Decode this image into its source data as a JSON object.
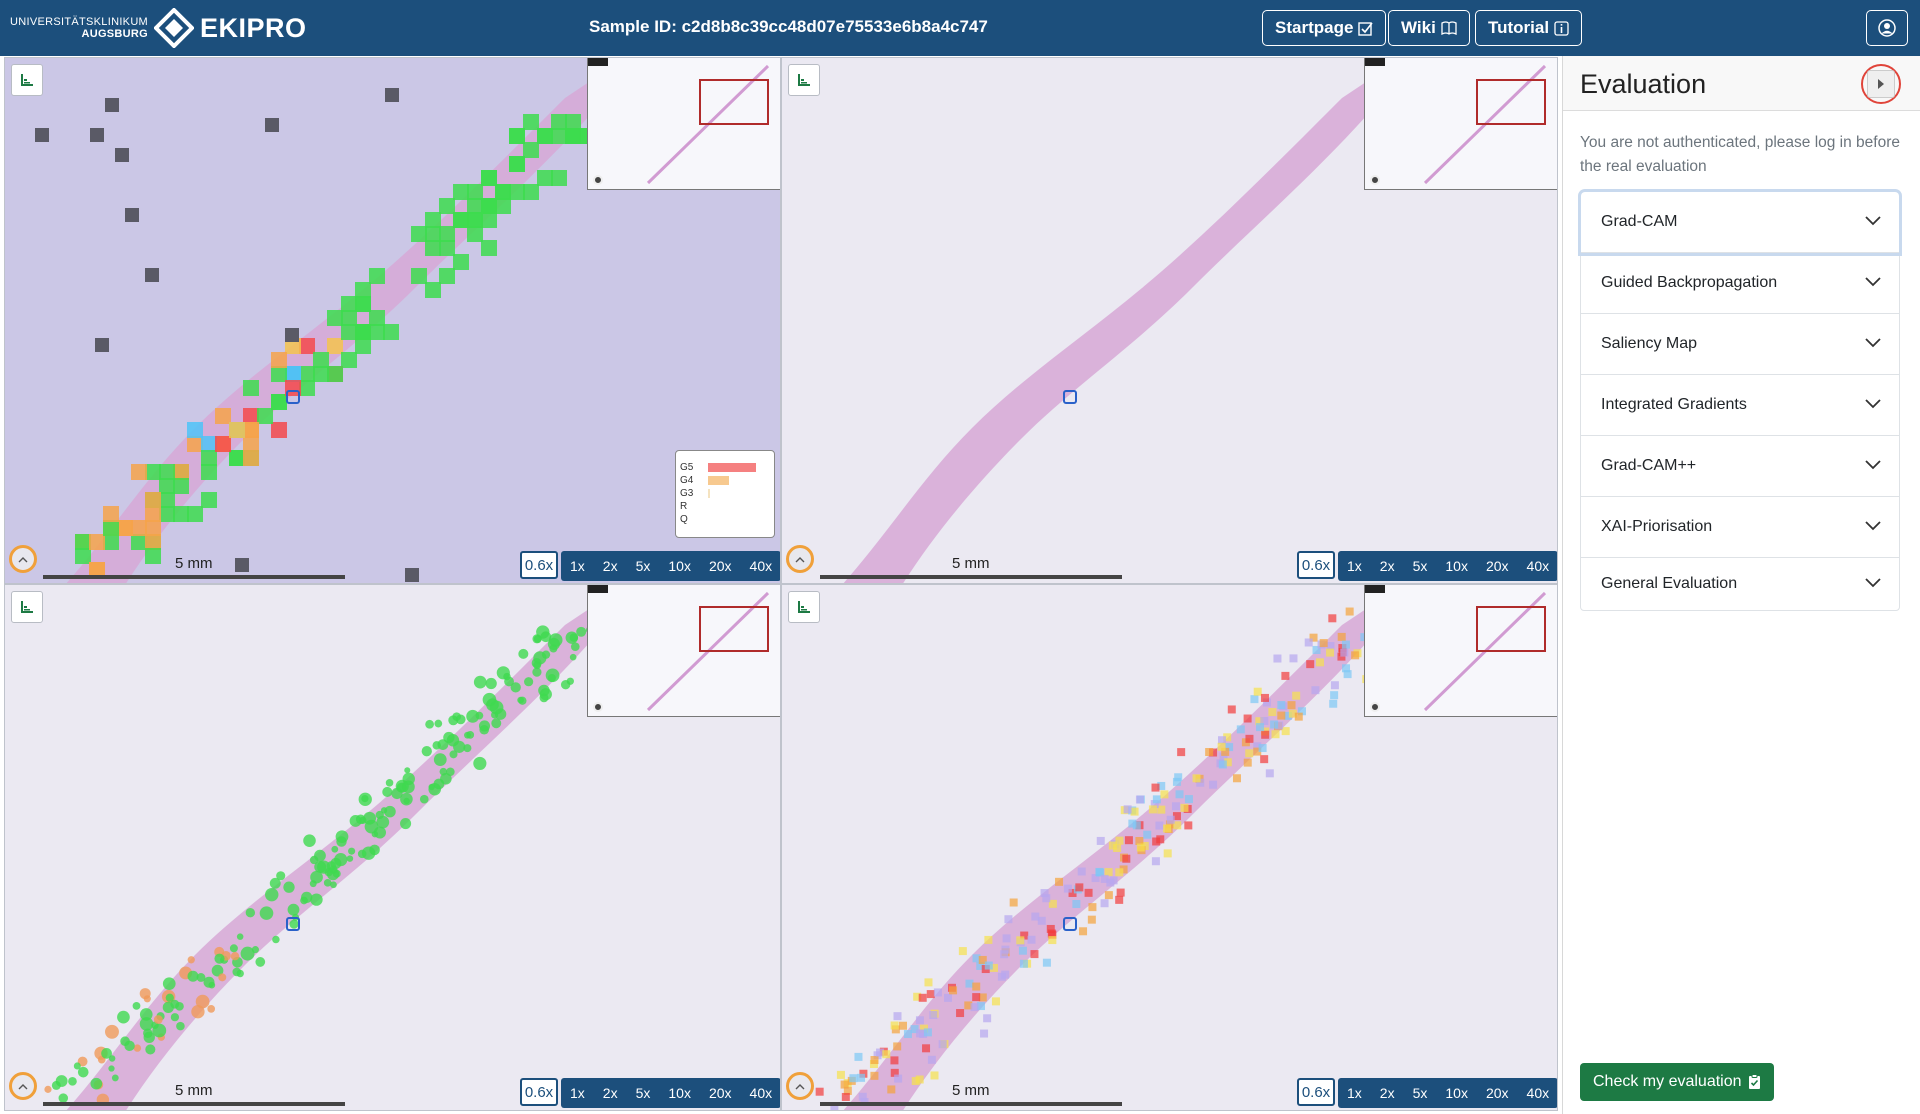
{
  "navbar": {
    "brand_university_line1": "UNIVERSITÄTSKLINIKUM",
    "brand_university_line2": "AUGSBURG",
    "brand_name": "EKIPRO",
    "sample_id": "Sample ID: c2d8b8c39cc48d07e75533e6b8a4c747",
    "buttons": {
      "startpage": "Startpage",
      "wiki": "Wiki",
      "tutorial": "Tutorial"
    },
    "colors": {
      "navbar_bg": "#1c4f7c"
    }
  },
  "viewers": [
    {
      "scale": "5 mm",
      "zoom_current": "0.6x",
      "zoom_levels": [
        "1x",
        "2x",
        "5x",
        "10x",
        "20x",
        "40x"
      ],
      "overlay": "grad-cam-tiles",
      "legend": {
        "labels": [
          "G5",
          "G4",
          "G3",
          "R",
          "Q"
        ],
        "colors": [
          "#f58080",
          "#f7c98f",
          "#f5e3c0",
          "#dddddd",
          "#dddddd"
        ],
        "values": [
          0.95,
          0.42,
          0.04,
          0.0,
          0.0
        ]
      }
    },
    {
      "scale": "5 mm",
      "zoom_current": "0.6x",
      "zoom_levels": [
        "1x",
        "2x",
        "5x",
        "10x",
        "20x",
        "40x"
      ],
      "overlay": "none"
    },
    {
      "scale": "5 mm",
      "zoom_current": "0.6x",
      "zoom_levels": [
        "1x",
        "2x",
        "5x",
        "10x",
        "20x",
        "40x"
      ],
      "overlay": "guided-backprop"
    },
    {
      "scale": "5 mm",
      "zoom_current": "0.6x",
      "zoom_levels": [
        "1x",
        "2x",
        "5x",
        "10x",
        "20x",
        "40x"
      ],
      "overlay": "saliency-heatmap"
    }
  ],
  "sidebar": {
    "title": "Evaluation",
    "auth_message": "You are not authenticated, please log in before the real evaluation",
    "sections": [
      "Grad-CAM",
      "Guided Backpropagation",
      "Saliency Map",
      "Integrated Gradients",
      "Grad-CAM++",
      "XAI-Priorisation",
      "General Evaluation"
    ],
    "check_button": "Check my evaluation"
  }
}
